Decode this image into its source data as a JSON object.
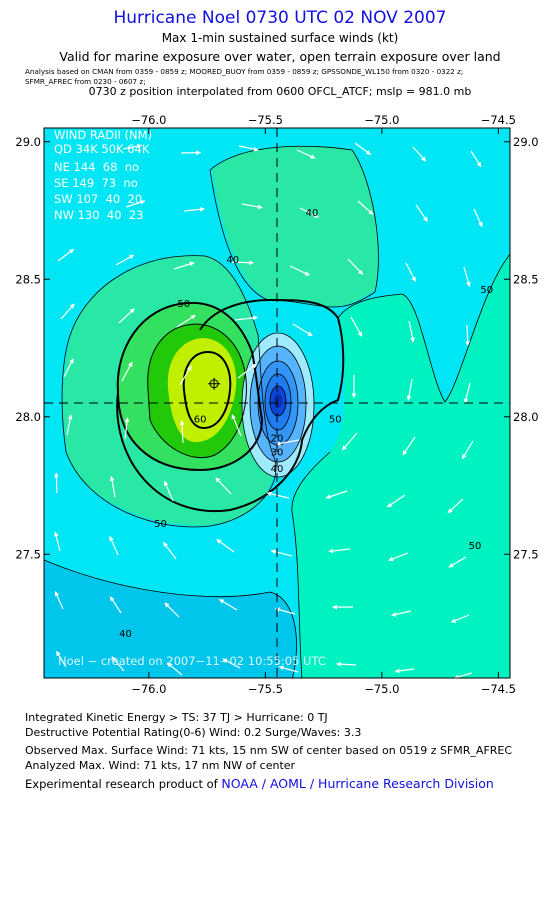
{
  "header": {
    "title": "Hurricane Noel 0730 UTC 02 NOV 2007",
    "subtitle1": "Max 1-min sustained surface winds (kt)",
    "subtitle2": "Valid for marine exposure over water, open terrain exposure over land",
    "analysis_line1": "Analysis based on  CMAN from 0359 - 0859 z;  MOORED_BUOY from 0359 - 0859 z;  GPSSONDE_WL150 from 0320 - 0322 z;",
    "analysis_line2": "SFMR_AFREC from 0230 - 0607 z;",
    "position_line": "0730 z position interpolated from 0600 OFCL_ATCF; mslp = 981.0 mb"
  },
  "chart_data": {
    "type": "contour",
    "x_range": [
      -76.45,
      -74.45
    ],
    "y_range": [
      27.05,
      29.05
    ],
    "x_ticks": [
      -76.0,
      -75.5,
      -75.0,
      -74.5
    ],
    "x_tick_labels": [
      "−76.0",
      "−75.5",
      "−75.0",
      "−74.5"
    ],
    "y_ticks": [
      27.5,
      28.0,
      28.5,
      29.0
    ],
    "y_tick_labels": [
      "27.5",
      "28.0",
      "28.5",
      "29.0"
    ],
    "center": {
      "lon": -75.45,
      "lat": 28.05
    },
    "max_wind_marker": {
      "lon": -75.72,
      "lat": 28.12
    },
    "contour_labels": [
      {
        "text": "40",
        "lon": -75.64,
        "lat": 28.56
      },
      {
        "text": "40",
        "lon": -75.3,
        "lat": 28.73
      },
      {
        "text": "50",
        "lon": -75.85,
        "lat": 28.4
      },
      {
        "text": "60",
        "lon": -75.78,
        "lat": 27.98
      },
      {
        "text": "50",
        "lon": -75.95,
        "lat": 27.6
      },
      {
        "text": "50",
        "lon": -75.2,
        "lat": 27.98
      },
      {
        "text": "40",
        "lon": -75.45,
        "lat": 27.8
      },
      {
        "text": "30",
        "lon": -75.45,
        "lat": 27.86
      },
      {
        "text": "20",
        "lon": -75.45,
        "lat": 27.91
      },
      {
        "text": "40",
        "lon": -76.1,
        "lat": 27.2
      },
      {
        "text": "50",
        "lon": -74.6,
        "lat": 27.52
      },
      {
        "text": "50",
        "lon": -74.55,
        "lat": 28.45
      }
    ],
    "legend_color_note": "shading by wind speed, deep blue = calm eye, cyan ~30-40 kt, aquamarine ~40-50 kt, green ~50-60 kt, yellow-green >60 kt",
    "wind_radii": {
      "title": "WIND RADII (NM)",
      "header": "QD 34K 50K 64K",
      "rows": [
        "NE 144  68  no",
        "SE 149  73  no",
        "SW 107  40  20",
        "NW 130  40  23"
      ]
    },
    "watermark": "Noel − created on 2007−11−02 10:55:05 UTC",
    "colors": {
      "cyan": "#00e6f4",
      "aquamarine": "#00f2c0",
      "seagreen": "#29e8a6",
      "green": "#33e060",
      "brightgreen": "#22c80a",
      "yellowgreen": "#c0f000",
      "blue_light": "#56b4ff",
      "blue": "#1f7cf0",
      "blue_dark": "#0a46d6",
      "blue_deep": "#0a2eb0"
    }
  },
  "footer": {
    "ike": "Integrated Kinetic Energy > TS: 37 TJ   > Hurricane: 0 TJ",
    "dpr": "Destructive Potential Rating(0-6)   Wind: 0.2 Surge/Waves: 3.3",
    "observed": "Observed Max. Surface Wind: 71 kts, 15 nm SW of center based on 0519 z SFMR_AFREC",
    "analyzed": "Analyzed Max. Wind: 71 kts, 17 nm NW of center",
    "product_prefix": "Experimental research product of ",
    "product_org": "NOAA / AOML / Hurricane Research Division"
  }
}
